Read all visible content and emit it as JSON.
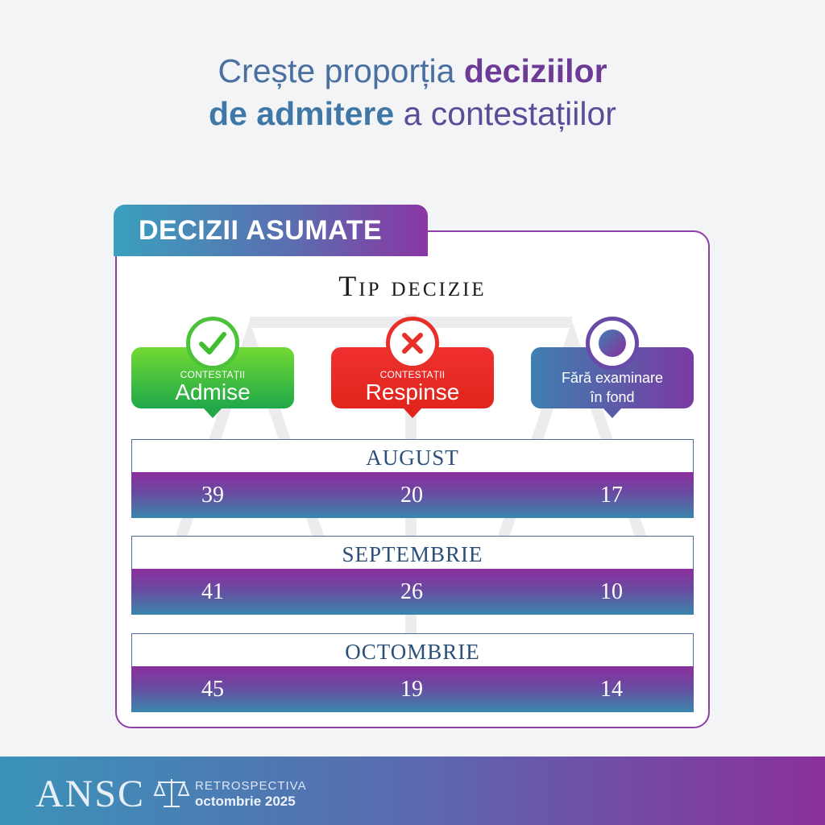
{
  "headline": {
    "part1": "Crește proporția ",
    "part2": "deciziilor",
    "part3": "de admitere",
    "part4": " a contestațiilor"
  },
  "card": {
    "tab_label": "DECIZII ASUMATE",
    "title": "Tip decizie"
  },
  "categories": [
    {
      "small": "CONTESTAȚII",
      "big": "Admise",
      "icon": "check-icon",
      "color": "#2fb84a"
    },
    {
      "small": "CONTESTAȚII",
      "big": "Respinse",
      "icon": "x-icon",
      "color": "#e8302a"
    },
    {
      "line1": "Fără examinare",
      "line2": "în fond",
      "icon": "circle-dot-icon",
      "color": "#6a4aa8"
    }
  ],
  "months": [
    {
      "name": "AUGUST",
      "values": [
        "39",
        "20",
        "17"
      ]
    },
    {
      "name": "SEPTEMBRIE",
      "values": [
        "41",
        "26",
        "10"
      ]
    },
    {
      "name": "OCTOMBRIE",
      "values": [
        "45",
        "19",
        "14"
      ]
    }
  ],
  "footer": {
    "logo": "ANSC",
    "retro": "RETROSPECTIVA",
    "date": "octombrie 2025"
  }
}
